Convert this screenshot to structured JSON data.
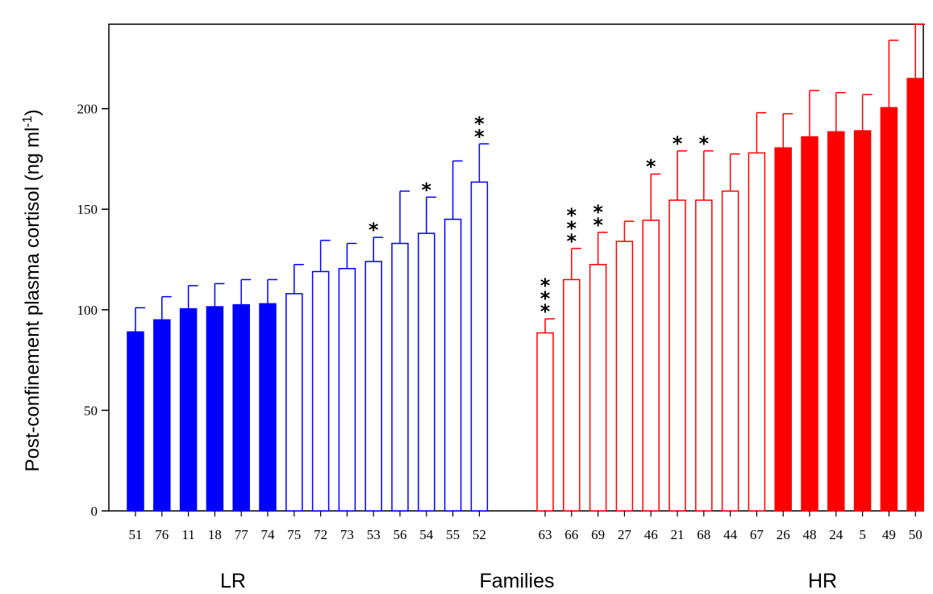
{
  "chart_data": {
    "type": "bar",
    "y_title_main": "Post-confinement plasma cortisol (ng ml",
    "y_title_sup": "-1",
    "y_title_close": ")",
    "xlabel": "Families",
    "ylim": [
      0,
      242
    ],
    "y_ticks": [
      "0",
      "50",
      "100",
      "150",
      "200"
    ],
    "y_tick_values": [
      0,
      50,
      100,
      150,
      200
    ],
    "group_labels": {
      "left": "LR",
      "right": "HR"
    },
    "colors": {
      "LR": "#0000ff",
      "HR": "#ff0000",
      "axis": "#000000"
    },
    "series": [
      {
        "group": "LR",
        "categories": [
          "51",
          "76",
          "11",
          "18",
          "77",
          "74",
          "75",
          "72",
          "73",
          "53",
          "56",
          "54",
          "55",
          "52"
        ],
        "values": [
          89,
          95,
          100.5,
          101.5,
          102.5,
          103,
          108,
          119,
          120.5,
          124,
          133,
          138,
          145,
          163.5
        ],
        "errors": [
          12,
          11.5,
          11.5,
          11.5,
          12.5,
          12,
          14.5,
          15.5,
          12.5,
          12,
          26,
          18,
          29,
          19
        ],
        "filled": [
          true,
          true,
          true,
          true,
          true,
          true,
          false,
          false,
          false,
          false,
          false,
          false,
          false,
          false
        ],
        "significance": [
          "",
          "",
          "",
          "",
          "",
          "",
          "",
          "",
          "",
          "*",
          "",
          "*",
          "",
          "**"
        ]
      },
      {
        "group": "HR",
        "categories": [
          "63",
          "66",
          "69",
          "27",
          "46",
          "21",
          "68",
          "44",
          "67",
          "26",
          "48",
          "24",
          "5",
          "49",
          "50"
        ],
        "values": [
          88.5,
          115,
          122.5,
          134,
          144.5,
          154.5,
          154.5,
          159,
          178,
          180.5,
          186,
          188.5,
          189,
          200.5,
          215
        ],
        "errors": [
          7,
          15.5,
          16,
          10,
          23,
          24.5,
          24.5,
          18.5,
          20,
          17,
          23,
          19.5,
          18,
          33.5,
          27
        ],
        "filled": [
          false,
          false,
          false,
          false,
          false,
          false,
          false,
          false,
          false,
          true,
          true,
          true,
          true,
          true,
          true
        ],
        "significance": [
          "***",
          "***",
          "**",
          "",
          "*",
          "*",
          "*",
          "",
          "",
          "",
          "",
          "",
          "",
          "",
          ""
        ]
      }
    ]
  }
}
